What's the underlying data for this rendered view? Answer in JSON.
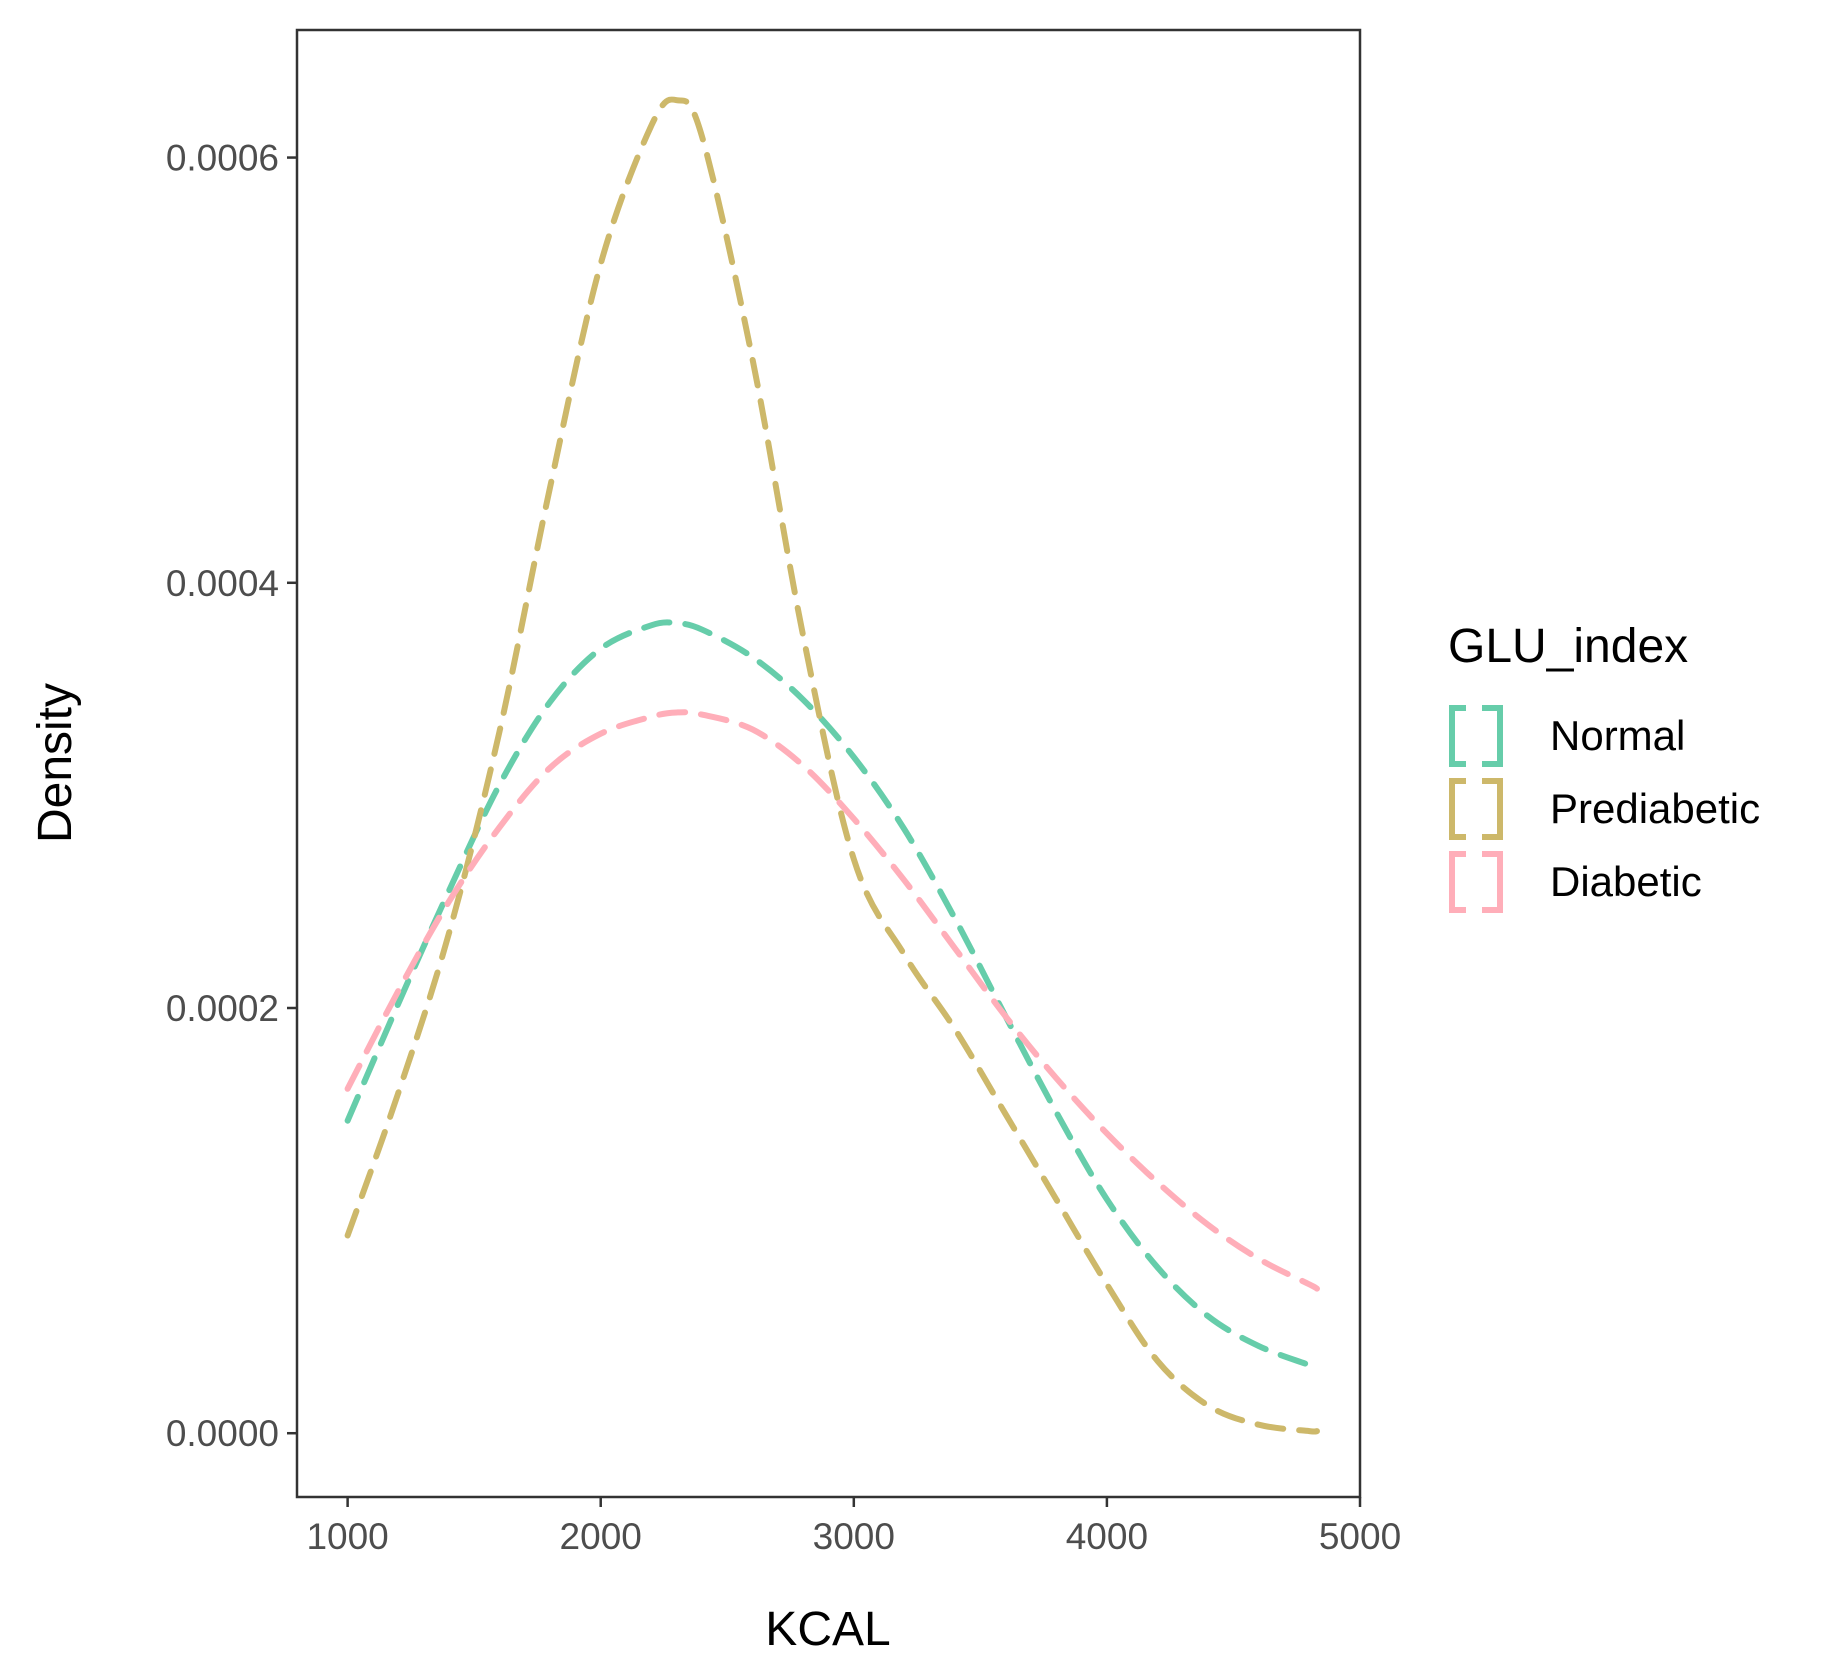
{
  "chart_data": {
    "type": "line",
    "subtype": "density",
    "xlabel": "KCAL",
    "ylabel": "Density",
    "xlim": [
      800,
      5000
    ],
    "ylim": [
      -3e-05,
      0.00066
    ],
    "xticks": [
      1000,
      2000,
      3000,
      4000,
      5000
    ],
    "xtick_labels": [
      "1000",
      "2000",
      "3000",
      "4000",
      "5000"
    ],
    "yticks": [
      0,
      0.0002,
      0.0004,
      0.0006
    ],
    "ytick_labels": [
      "0.0000",
      "0.0002",
      "0.0004",
      "0.0006"
    ],
    "grid": false,
    "line_style": "dashed",
    "legend": {
      "title": "GLU_index",
      "position": "right"
    },
    "x": [
      1000,
      1200,
      1400,
      1600,
      1800,
      2000,
      2200,
      2300,
      2400,
      2600,
      2800,
      3000,
      3200,
      3400,
      3600,
      3800,
      4000,
      4200,
      4400,
      4600,
      4800,
      4830
    ],
    "series": [
      {
        "name": "Normal",
        "color": "#66CDAA",
        "values": [
          0.000147,
          0.000202,
          0.000255,
          0.000305,
          0.000344,
          0.000369,
          0.00038,
          0.000381,
          0.000378,
          0.000365,
          0.000345,
          0.000318,
          0.000284,
          0.000242,
          0.000196,
          0.000151,
          0.00011,
          7.8e-05,
          5.5e-05,
          4.1e-05,
          3.2e-05,
          3e-05
        ]
      },
      {
        "name": "Prediabetic",
        "color": "#CDB86A",
        "values": [
          9.3e-05,
          0.00016,
          0.000235,
          0.00033,
          0.000445,
          0.00055,
          0.000615,
          0.000627,
          0.00061,
          0.000505,
          0.000375,
          0.00027,
          0.000225,
          0.00019,
          0.00015,
          0.00011,
          7e-05,
          3.4e-05,
          1.3e-05,
          4e-06,
          1e-06,
          1e-06
        ]
      },
      {
        "name": "Diabetic",
        "color": "#FFAEB9",
        "values": [
          0.000162,
          0.000208,
          0.00025,
          0.000285,
          0.000313,
          0.000329,
          0.000337,
          0.000339,
          0.000338,
          0.000331,
          0.000314,
          0.000289,
          0.00026,
          0.000228,
          0.000196,
          0.000167,
          0.000141,
          0.000118,
          9.8e-05,
          8.2e-05,
          7e-05,
          6.8e-05
        ]
      }
    ]
  }
}
